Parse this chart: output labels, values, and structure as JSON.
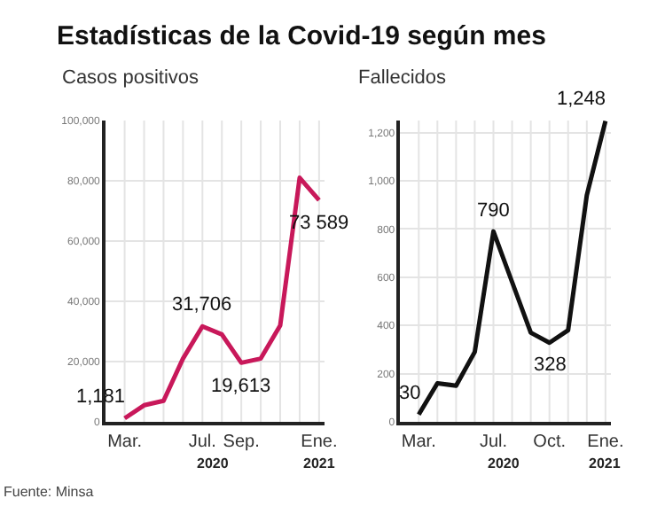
{
  "chart_data": [
    {
      "type": "line",
      "title": "Estadísticas de la Covid-19 según mes",
      "subtitle": "Casos positivos",
      "categories": [
        "Mar.",
        null,
        null,
        null,
        "Jul.",
        null,
        "Sep.",
        null,
        null,
        null,
        "Ene."
      ],
      "series": [
        {
          "color": "#c8185a",
          "values": [
            1181,
            5500,
            7000,
            21000,
            31706,
            29000,
            19613,
            21000,
            32000,
            81000,
            73589
          ],
          "value_labels": [
            "1,181",
            null,
            null,
            null,
            "31,706",
            null,
            "19,613",
            null,
            null,
            null,
            "73 589"
          ]
        }
      ],
      "ylim": [
        0,
        100000
      ],
      "yticks": [
        {
          "value": 0,
          "label": "0"
        },
        {
          "value": 20000,
          "label": "20,000"
        },
        {
          "value": 40000,
          "label": "40,000"
        },
        {
          "value": 60000,
          "label": "60,000"
        },
        {
          "value": 80000,
          "label": "80,000"
        },
        {
          "value": 100000,
          "label": "100,000"
        }
      ],
      "grid": true,
      "marker": "none",
      "line_style": "solid",
      "annotations": [
        "2020",
        "2021",
        "Fuente: Minsa"
      ]
    },
    {
      "type": "line",
      "subtitle": "Fallecidos",
      "categories": [
        "Mar.",
        null,
        null,
        null,
        "Jul.",
        null,
        null,
        "Oct.",
        null,
        null,
        "Ene."
      ],
      "series": [
        {
          "color": "#111111",
          "values": [
            30,
            160,
            150,
            290,
            790,
            580,
            370,
            328,
            380,
            940,
            1248
          ],
          "value_labels": [
            "30",
            null,
            null,
            null,
            "790",
            null,
            null,
            "328",
            null,
            null,
            "1,248"
          ]
        }
      ],
      "ylim": [
        0,
        1250
      ],
      "yticks": [
        {
          "value": 0,
          "label": "0"
        },
        {
          "value": 200,
          "label": "200"
        },
        {
          "value": 400,
          "label": "400"
        },
        {
          "value": 600,
          "label": "600"
        },
        {
          "value": 800,
          "label": "800"
        },
        {
          "value": 1000,
          "label": "1,000"
        },
        {
          "value": 1200,
          "label": "1,200"
        }
      ],
      "grid": true,
      "marker": "none",
      "line_style": "solid",
      "annotations": [
        "2020",
        "2021"
      ]
    }
  ]
}
